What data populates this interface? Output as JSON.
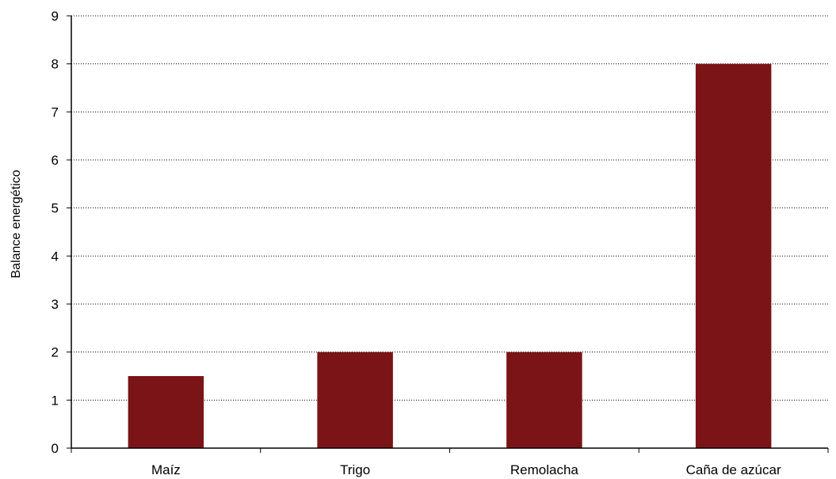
{
  "chart_data": {
    "type": "bar",
    "categories": [
      "Maíz",
      "Trigo",
      "Remolacha",
      "Caña de azúcar"
    ],
    "values": [
      1.5,
      2,
      2,
      8
    ],
    "ylabel": "Balance energético",
    "xlabel": "",
    "ylim": [
      0,
      9
    ],
    "yticks": [
      "0",
      "1",
      "2",
      "3",
      "4",
      "5",
      "6",
      "7",
      "8",
      "9"
    ],
    "grid": "horizontal dotted",
    "bar_color": "#7b1416"
  }
}
